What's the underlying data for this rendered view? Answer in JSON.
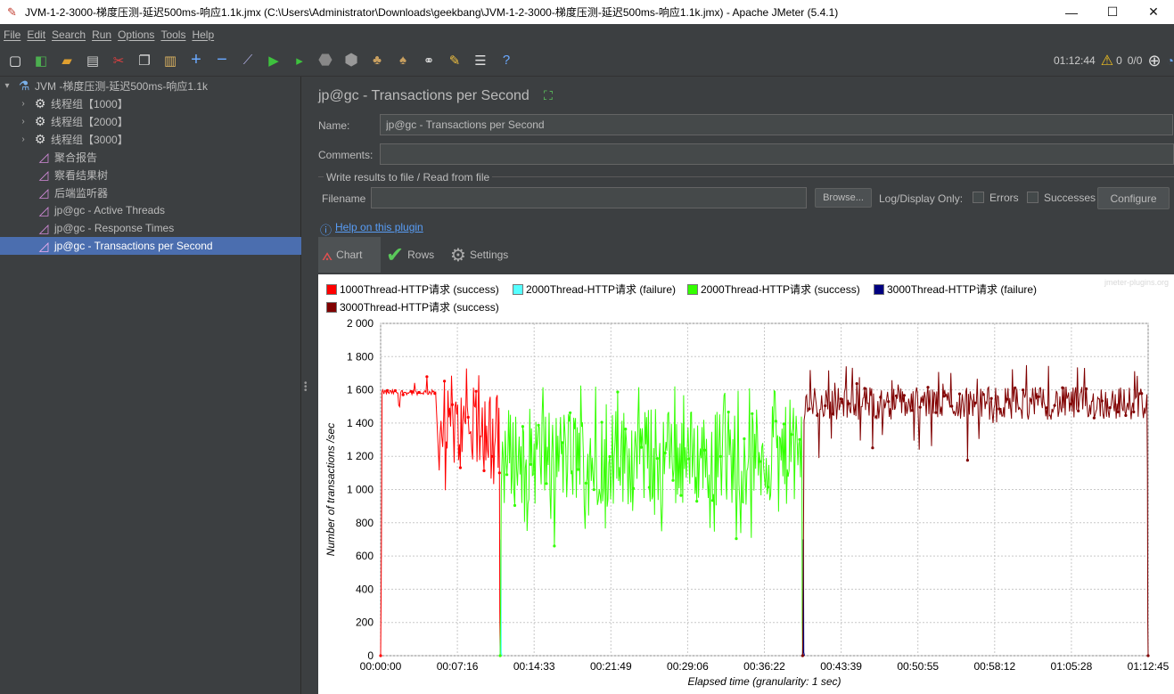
{
  "window": {
    "title": "JVM-1-2-3000-梯度压测-延迟500ms-响应1.1k.jmx (C:\\Users\\Administrator\\Downloads\\geekbang\\JVM-1-2-3000-梯度压测-延迟500ms-响应1.1k.jmx) - Apache JMeter (5.4.1)",
    "minimize": "—",
    "maximize": "☐",
    "close": "✕"
  },
  "menu": [
    "File",
    "Edit",
    "Search",
    "Run",
    "Options",
    "Tools",
    "Help"
  ],
  "toolbar": {
    "elapsed": "01:12:44",
    "warnings": "0",
    "threads": "0/0"
  },
  "tree": {
    "root": "JVM -梯度压测-延迟500ms-响应1.1k",
    "items": [
      {
        "label": "线程组【1000】",
        "icon": "gear-icon",
        "expandable": true
      },
      {
        "label": "线程组【2000】",
        "icon": "gear-icon",
        "expandable": true
      },
      {
        "label": "线程组【3000】",
        "icon": "gear-icon",
        "expandable": true
      },
      {
        "label": "聚合报告",
        "icon": "graph-icon",
        "expandable": false
      },
      {
        "label": "察看结果树",
        "icon": "graph-icon",
        "expandable": false
      },
      {
        "label": "后端监听器",
        "icon": "graph-icon",
        "expandable": false
      },
      {
        "label": "jp@gc - Active Threads",
        "icon": "graph-icon",
        "expandable": false
      },
      {
        "label": "jp@gc - Response Times",
        "icon": "graph-icon",
        "expandable": false
      },
      {
        "label": "jp@gc - Transactions per Second",
        "icon": "graph-icon",
        "expandable": false,
        "selected": true
      }
    ]
  },
  "panel": {
    "title": "jp@gc - Transactions per Second",
    "name_label": "Name:",
    "name_value": "jp@gc - Transactions per Second",
    "comments_label": "Comments:",
    "comments_value": "",
    "file_group": "Write results to file / Read from file",
    "filename_label": "Filename",
    "filename_value": "",
    "browse": "Browse...",
    "log_display": "Log/Display Only:",
    "errors": "Errors",
    "successes": "Successes",
    "configure": "Configure",
    "help_link": "Help on this plugin",
    "tabs": [
      "Chart",
      "Rows",
      "Settings"
    ]
  },
  "chart_data": {
    "type": "line",
    "watermark": "jmeter-plugins.org",
    "xlabel": "Elapsed time (granularity: 1 sec)",
    "ylabel": "Number of transactions /sec",
    "ylim": [
      0,
      2000
    ],
    "yticks": [
      "0",
      "200",
      "400",
      "600",
      "800",
      "1 000",
      "1 200",
      "1 400",
      "1 600",
      "1 800",
      "2 000"
    ],
    "xticks": [
      "00:00:00",
      "00:07:16",
      "00:14:33",
      "00:21:49",
      "00:29:06",
      "00:36:22",
      "00:43:39",
      "00:50:55",
      "00:58:12",
      "01:05:28",
      "01:12:45"
    ],
    "xlim_seconds": [
      0,
      4365
    ],
    "grid": true,
    "legend_position": "top",
    "series": [
      {
        "name": "1000Thread-HTTP请求 (success)",
        "color": "#ff0000",
        "start": 0,
        "end": 680,
        "phases": [
          {
            "from": 0,
            "to": 320,
            "low": 1570,
            "high": 1600
          },
          {
            "from": 320,
            "to": 680,
            "low": 1100,
            "high": 1600
          }
        ]
      },
      {
        "name": "2000Thread-HTTP请求 (failure)",
        "color": "#55ffff",
        "start": 680,
        "end": 690,
        "phases": []
      },
      {
        "name": "2000Thread-HTTP请求 (success)",
        "color": "#33ff00",
        "start": 680,
        "end": 2400,
        "phases": [
          {
            "from": 680,
            "to": 2400,
            "low": 900,
            "high": 1500
          }
        ]
      },
      {
        "name": "3000Thread-HTTP请求 (failure)",
        "color": "#000080",
        "start": 2400,
        "end": 2410,
        "phases": []
      },
      {
        "name": "3000Thread-HTTP请求 (success)",
        "color": "#800000",
        "start": 2400,
        "end": 4365,
        "phases": [
          {
            "from": 2400,
            "to": 4365,
            "low": 1420,
            "high": 1620
          }
        ]
      }
    ]
  }
}
